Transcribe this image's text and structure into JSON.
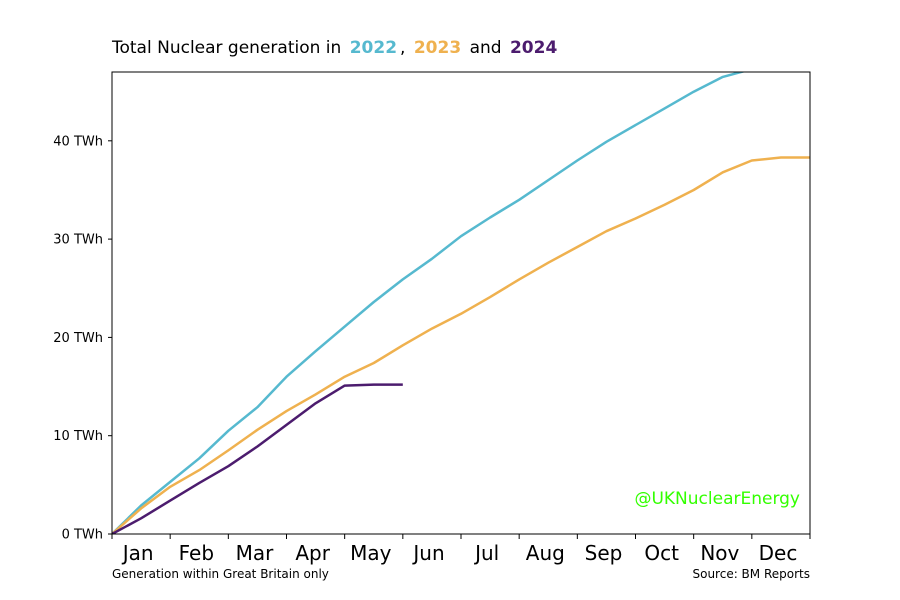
{
  "title": {
    "prefix": "Total Nuclear generation in",
    "y1": "2022",
    "sep1": ",",
    "y2": "2023",
    "sep2": "and",
    "y3": "2024"
  },
  "footer_left": "Generation within Great Britain only",
  "footer_right": "Source: BM Reports",
  "watermark": "@UKNuclearEnergy",
  "colors": {
    "2022": "#56b9cf",
    "2023": "#efb14f",
    "2024": "#4c1c6e",
    "watermark": "#33ff00"
  },
  "chart_data": {
    "type": "line",
    "title": "Total Nuclear generation in 2022, 2023 and 2024",
    "x_unit": "month",
    "xlim": [
      0,
      12
    ],
    "ylim": [
      0,
      47
    ],
    "y_ticks": [
      0,
      10,
      20,
      30,
      40
    ],
    "y_tick_labels": [
      "0 TWh",
      "10 TWh",
      "20 TWh",
      "30 TWh",
      "40 TWh"
    ],
    "x_tick_labels": [
      "Jan",
      "Feb",
      "Mar",
      "Apr",
      "May",
      "Jun",
      "Jul",
      "Aug",
      "Sep",
      "Oct",
      "Nov",
      "Dec"
    ],
    "grid": false,
    "legend": "none",
    "series": [
      {
        "name": "2022",
        "color": "#56b9cf",
        "x": [
          0,
          0.5,
          1,
          1.5,
          2,
          2.5,
          3,
          3.5,
          4,
          4.5,
          5,
          5.5,
          6,
          6.5,
          7,
          7.5,
          8,
          8.5,
          9,
          9.5,
          10,
          10.5,
          11,
          11.5,
          12
        ],
        "y": [
          0,
          2.9,
          5.3,
          7.7,
          10.5,
          12.9,
          16.0,
          18.6,
          21.1,
          23.6,
          25.9,
          28.0,
          30.3,
          32.2,
          34.0,
          36.0,
          38.0,
          39.9,
          41.6,
          43.3,
          45.0,
          46.5,
          47.3,
          47.5,
          47.5
        ]
      },
      {
        "name": "2023",
        "color": "#efb14f",
        "x": [
          0,
          0.5,
          1,
          1.5,
          2,
          2.5,
          3,
          3.5,
          4,
          4.5,
          5,
          5.5,
          6,
          6.5,
          7,
          7.5,
          8,
          8.5,
          9,
          9.5,
          10,
          10.5,
          11,
          11.5,
          12
        ],
        "y": [
          0,
          2.6,
          4.8,
          6.5,
          8.5,
          10.6,
          12.5,
          14.2,
          16.0,
          17.4,
          19.2,
          20.9,
          22.4,
          24.1,
          25.9,
          27.6,
          29.2,
          30.8,
          32.1,
          33.5,
          35.0,
          36.8,
          38.0,
          38.3,
          38.3
        ]
      },
      {
        "name": "2024",
        "color": "#4c1c6e",
        "x": [
          0,
          0.5,
          1,
          1.5,
          2,
          2.5,
          3,
          3.5,
          4,
          4.5,
          5
        ],
        "y": [
          0,
          1.6,
          3.4,
          5.2,
          6.9,
          8.9,
          11.1,
          13.3,
          15.1,
          15.2,
          15.2
        ]
      }
    ]
  }
}
